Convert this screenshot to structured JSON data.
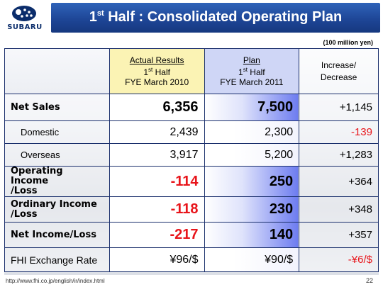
{
  "brand": {
    "logo_text": "SUBARU"
  },
  "title": {
    "prefix": "1",
    "sup": "st",
    "rest": " Half : Consolidated Operating Plan"
  },
  "unit": "(100 million yen)",
  "columns": {
    "actual": {
      "line1": "Actual Results",
      "line2a": "1",
      "line2sup": "st",
      "line2b": " Half",
      "line3": "FYE March 2010"
    },
    "plan": {
      "line1": "Plan",
      "line2a": "1",
      "line2sup": "st",
      "line2b": " Half",
      "line3": "FYE March 2011"
    },
    "change": {
      "line1": "Increase/",
      "line2": "Decrease"
    }
  },
  "rows": [
    {
      "label": "Net Sales",
      "actual": "6,356",
      "plan": "7,500",
      "change": "+1,145"
    },
    {
      "label": "Domestic",
      "actual": "2,439",
      "plan": "2,300",
      "change": "-139"
    },
    {
      "label": "Overseas",
      "actual": "3,917",
      "plan": "5,200",
      "change": "+1,283"
    },
    {
      "label_line1": "Operating Income",
      "label_line2": "/Loss",
      "actual": "-114",
      "plan": "250",
      "change": "+364"
    },
    {
      "label_line1": "Ordinary Income",
      "label_line2": "/Loss",
      "actual": "-118",
      "plan": "230",
      "change": "+348"
    },
    {
      "label": "Net Income/Loss",
      "actual": "-217",
      "plan": "140",
      "change": "+357"
    },
    {
      "label": "FHI Exchange Rate",
      "actual": "¥96/$",
      "plan": "¥90/$",
      "change": "-¥6/$"
    }
  ],
  "footer": {
    "url": "http://www.fhi.co.jp/english/ir/index.html",
    "page": "22"
  },
  "colors": {
    "title_bar": "#1d4494",
    "negative": "#e8141a",
    "actual_header": "#fbf3b4",
    "plan_header": "#cfd6f6",
    "border": "#1a2f6c"
  }
}
